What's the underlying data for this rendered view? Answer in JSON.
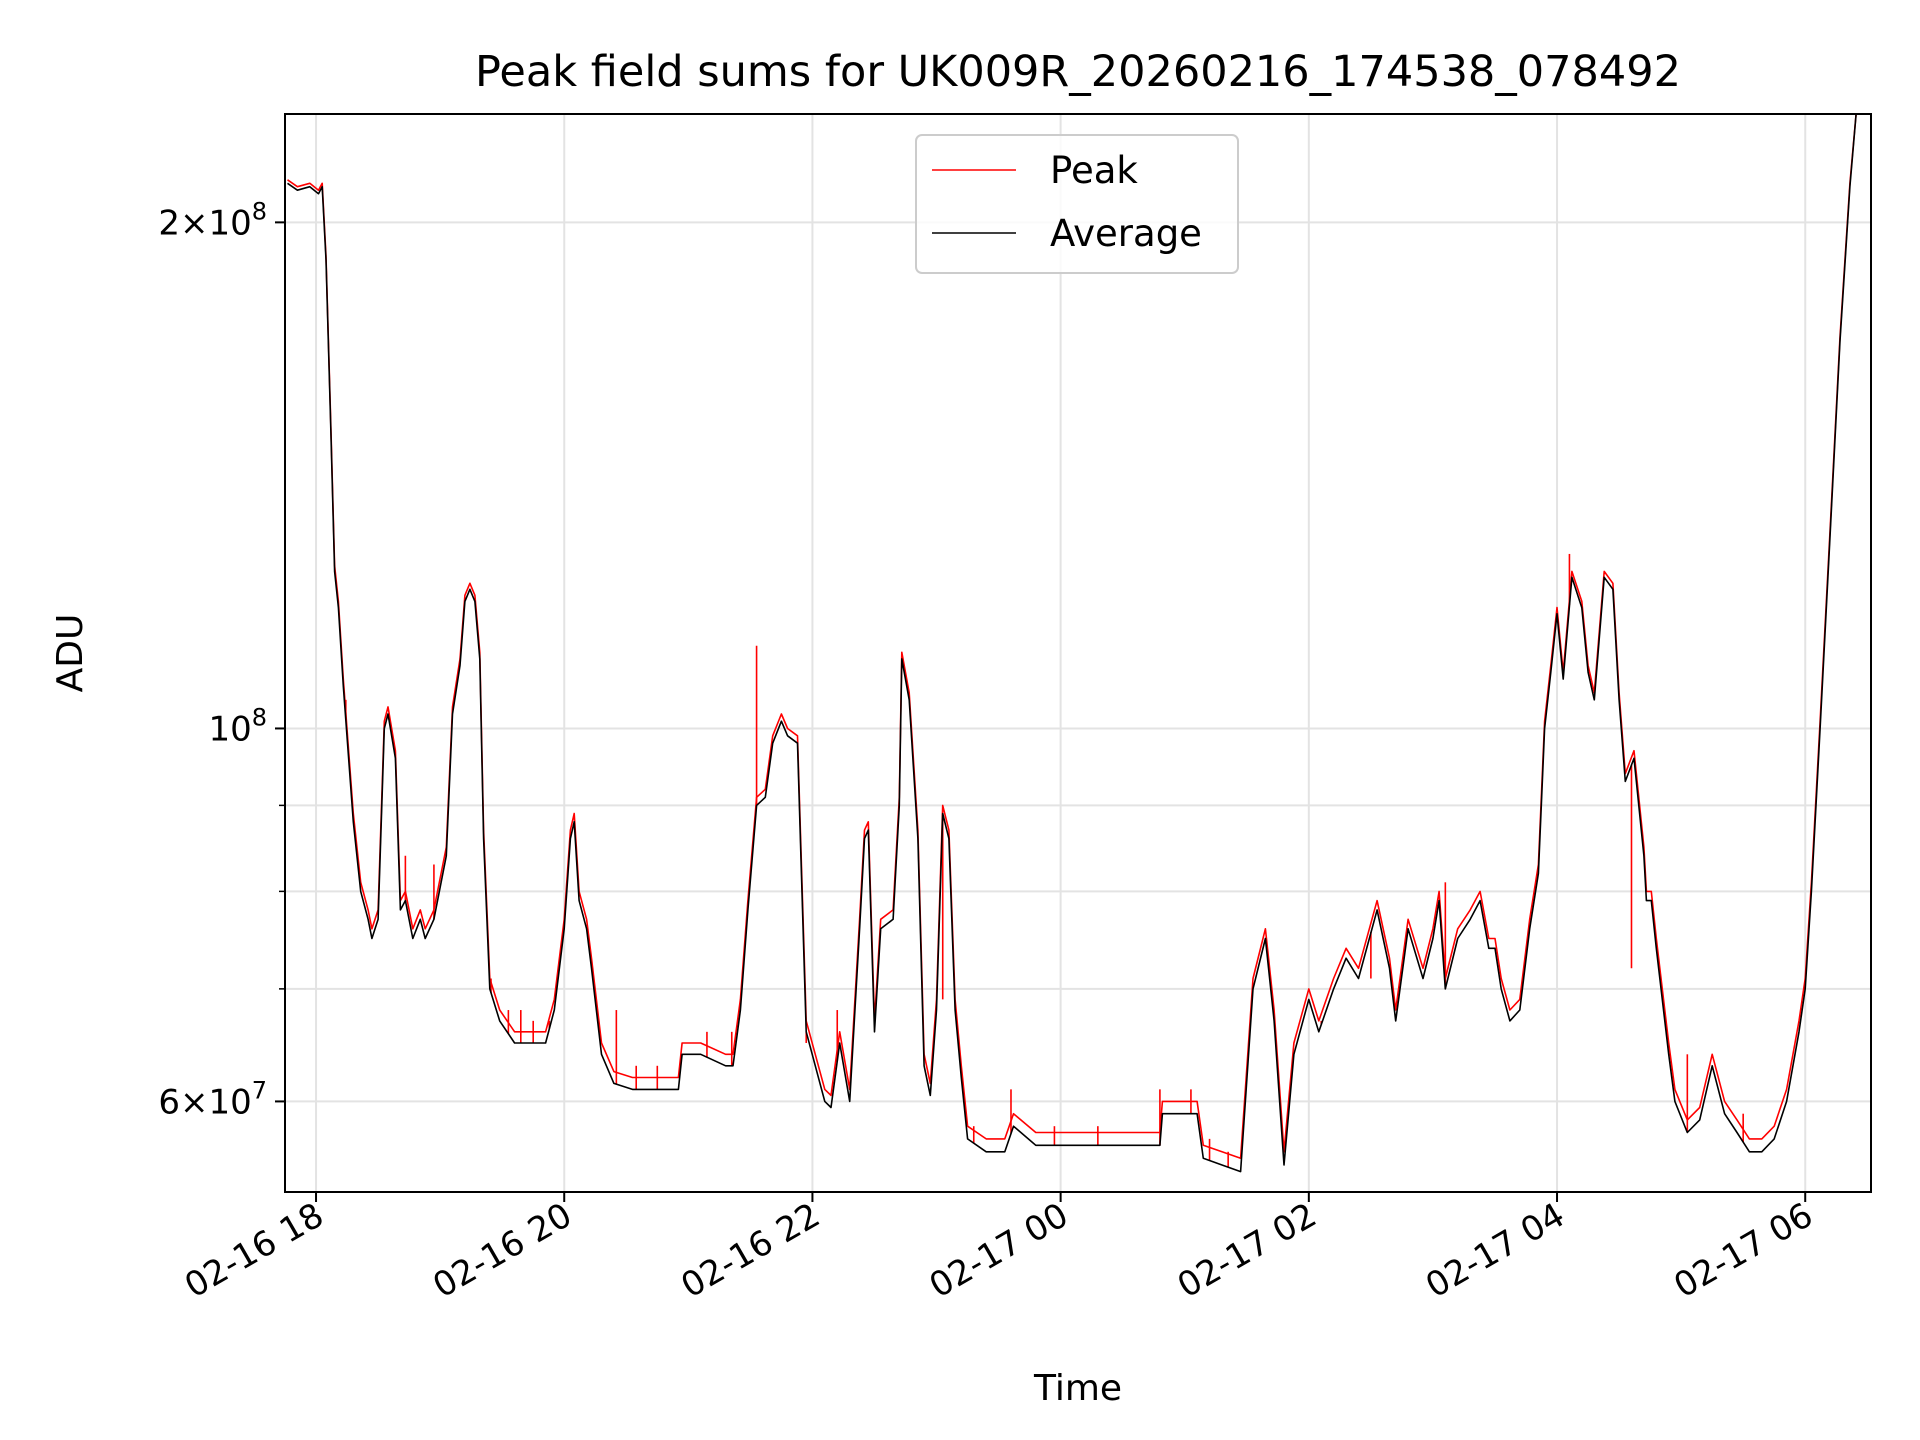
{
  "chart_data": {
    "type": "line",
    "title": "Peak field sums for UK009R_20260216_174538_078492",
    "xlabel": "Time",
    "ylabel": "ADU",
    "yscale": "log",
    "ylim": [
      53000000,
      232000000
    ],
    "xlim_hours": [
      17.75,
      30.53
    ],
    "grid": true,
    "legend_position": "top-center",
    "colors": {
      "peak": "#ff0000",
      "average": "#000000"
    },
    "x_ticks": [
      {
        "hour": 18,
        "label": "02-16 18"
      },
      {
        "hour": 20,
        "label": "02-16 20"
      },
      {
        "hour": 22,
        "label": "02-16 22"
      },
      {
        "hour": 24,
        "label": "02-17 00"
      },
      {
        "hour": 26,
        "label": "02-17 02"
      },
      {
        "hour": 28,
        "label": "02-17 04"
      },
      {
        "hour": 30,
        "label": "02-17 06"
      }
    ],
    "y_major_ticks": [
      {
        "value": 60000000,
        "mantissa": "6",
        "base": "10",
        "exp": "7"
      },
      {
        "value": 100000000,
        "mantissa": "",
        "base": "10",
        "exp": "8"
      },
      {
        "value": 200000000,
        "mantissa": "2",
        "base": "10",
        "exp": "8"
      }
    ],
    "y_minor_ticks": [
      70000000,
      80000000,
      90000000
    ],
    "series": [
      {
        "name": "Peak",
        "offset": 1000000,
        "spikes": [
          [
            18.24,
            104000000
          ],
          [
            18.72,
            84000000
          ],
          [
            18.95,
            83000000
          ],
          [
            19.41,
            71000000
          ],
          [
            19.55,
            68000000
          ],
          [
            19.65,
            68000000
          ],
          [
            19.75,
            67000000
          ],
          [
            19.88,
            67000000
          ],
          [
            20.3,
            64000000
          ],
          [
            20.42,
            68000000
          ],
          [
            20.58,
            63000000
          ],
          [
            20.75,
            63000000
          ],
          [
            21.15,
            66000000
          ],
          [
            21.35,
            66000000
          ],
          [
            21.55,
            112000000
          ],
          [
            21.95,
            65000000
          ],
          [
            22.2,
            68000000
          ],
          [
            23.05,
            69000000
          ],
          [
            23.3,
            58000000
          ],
          [
            23.6,
            61000000
          ],
          [
            23.95,
            58000000
          ],
          [
            24.3,
            58000000
          ],
          [
            24.8,
            61000000
          ],
          [
            25.05,
            61000000
          ],
          [
            25.2,
            57000000
          ],
          [
            25.35,
            56000000
          ],
          [
            26.1,
            67000000
          ],
          [
            26.5,
            71000000
          ],
          [
            27.1,
            81000000
          ],
          [
            27.3,
            77000000
          ],
          [
            28.1,
            127000000
          ],
          [
            28.6,
            72000000
          ],
          [
            29.05,
            64000000
          ],
          [
            29.3,
            61000000
          ],
          [
            29.5,
            59000000
          ]
        ]
      },
      {
        "name": "Average",
        "offset": 0,
        "points": [
          [
            17.77,
            211000000
          ],
          [
            17.85,
            209000000
          ],
          [
            17.95,
            210000000
          ],
          [
            18.02,
            208000000
          ],
          [
            18.05,
            210000000
          ],
          [
            18.08,
            190000000
          ],
          [
            18.12,
            150000000
          ],
          [
            18.15,
            124000000
          ],
          [
            18.18,
            118000000
          ],
          [
            18.22,
            106000000
          ],
          [
            18.3,
            88000000
          ],
          [
            18.36,
            80000000
          ],
          [
            18.42,
            77000000
          ],
          [
            18.45,
            75000000
          ],
          [
            18.5,
            77000000
          ],
          [
            18.55,
            100000000
          ],
          [
            18.58,
            102000000
          ],
          [
            18.64,
            96000000
          ],
          [
            18.68,
            78000000
          ],
          [
            18.72,
            79000000
          ],
          [
            18.78,
            75000000
          ],
          [
            18.84,
            77000000
          ],
          [
            18.88,
            75000000
          ],
          [
            18.95,
            77000000
          ],
          [
            19.05,
            84000000
          ],
          [
            19.1,
            102000000
          ],
          [
            19.16,
            109000000
          ],
          [
            19.2,
            119000000
          ],
          [
            19.24,
            121000000
          ],
          [
            19.28,
            119000000
          ],
          [
            19.32,
            110000000
          ],
          [
            19.35,
            86000000
          ],
          [
            19.4,
            70000000
          ],
          [
            19.48,
            67000000
          ],
          [
            19.6,
            65000000
          ],
          [
            19.75,
            65000000
          ],
          [
            19.85,
            65000000
          ],
          [
            19.92,
            68000000
          ],
          [
            20.0,
            76000000
          ],
          [
            20.05,
            86000000
          ],
          [
            20.08,
            88000000
          ],
          [
            20.12,
            79000000
          ],
          [
            20.18,
            76000000
          ],
          [
            20.22,
            72000000
          ],
          [
            20.3,
            64000000
          ],
          [
            20.4,
            61500000
          ],
          [
            20.55,
            61000000
          ],
          [
            20.75,
            61000000
          ],
          [
            20.92,
            61000000
          ],
          [
            20.95,
            64000000
          ],
          [
            21.1,
            64000000
          ],
          [
            21.3,
            63000000
          ],
          [
            21.36,
            63000000
          ],
          [
            21.42,
            68000000
          ],
          [
            21.48,
            78000000
          ],
          [
            21.55,
            90000000
          ],
          [
            21.62,
            91000000
          ],
          [
            21.68,
            98000000
          ],
          [
            21.75,
            101000000
          ],
          [
            21.8,
            99000000
          ],
          [
            21.88,
            98000000
          ],
          [
            21.95,
            66000000
          ],
          [
            22.1,
            60000000
          ],
          [
            22.15,
            59500000
          ],
          [
            22.22,
            65000000
          ],
          [
            22.3,
            60000000
          ],
          [
            22.38,
            76000000
          ],
          [
            22.42,
            86000000
          ],
          [
            22.45,
            87000000
          ],
          [
            22.5,
            66000000
          ],
          [
            22.55,
            76000000
          ],
          [
            22.65,
            77000000
          ],
          [
            22.7,
            90000000
          ],
          [
            22.72,
            110000000
          ],
          [
            22.78,
            104000000
          ],
          [
            22.85,
            86000000
          ],
          [
            22.9,
            63000000
          ],
          [
            22.95,
            60500000
          ],
          [
            23.0,
            68000000
          ],
          [
            23.05,
            89000000
          ],
          [
            23.1,
            86000000
          ],
          [
            23.15,
            68000000
          ],
          [
            23.2,
            62000000
          ],
          [
            23.25,
            57000000
          ],
          [
            23.4,
            56000000
          ],
          [
            23.55,
            56000000
          ],
          [
            23.62,
            58000000
          ],
          [
            23.8,
            56500000
          ],
          [
            24.2,
            56500000
          ],
          [
            24.6,
            56500000
          ],
          [
            24.8,
            56500000
          ],
          [
            24.82,
            59000000
          ],
          [
            25.1,
            59000000
          ],
          [
            25.15,
            55500000
          ],
          [
            25.3,
            55000000
          ],
          [
            25.45,
            54500000
          ],
          [
            25.55,
            70000000
          ],
          [
            25.65,
            75000000
          ],
          [
            25.72,
            67000000
          ],
          [
            25.8,
            55000000
          ],
          [
            25.88,
            64000000
          ],
          [
            26.0,
            69000000
          ],
          [
            26.08,
            66000000
          ],
          [
            26.2,
            70000000
          ],
          [
            26.3,
            73000000
          ],
          [
            26.4,
            71000000
          ],
          [
            26.55,
            78000000
          ],
          [
            26.65,
            72000000
          ],
          [
            26.7,
            67000000
          ],
          [
            26.8,
            76000000
          ],
          [
            26.92,
            71000000
          ],
          [
            27.0,
            75000000
          ],
          [
            27.05,
            79000000
          ],
          [
            27.1,
            70000000
          ],
          [
            27.2,
            75000000
          ],
          [
            27.3,
            77000000
          ],
          [
            27.38,
            79000000
          ],
          [
            27.45,
            74000000
          ],
          [
            27.5,
            74000000
          ],
          [
            27.55,
            70000000
          ],
          [
            27.62,
            67000000
          ],
          [
            27.7,
            68000000
          ],
          [
            27.78,
            76000000
          ],
          [
            27.85,
            82000000
          ],
          [
            27.9,
            100000000
          ],
          [
            27.95,
            108000000
          ],
          [
            28.0,
            117000000
          ],
          [
            28.05,
            107000000
          ],
          [
            28.12,
            123000000
          ],
          [
            28.2,
            118000000
          ],
          [
            28.25,
            108000000
          ],
          [
            28.3,
            104000000
          ],
          [
            28.38,
            123000000
          ],
          [
            28.45,
            121000000
          ],
          [
            28.5,
            104000000
          ],
          [
            28.55,
            93000000
          ],
          [
            28.62,
            96000000
          ],
          [
            28.7,
            84000000
          ],
          [
            28.72,
            79000000
          ],
          [
            28.76,
            79000000
          ],
          [
            28.8,
            74000000
          ],
          [
            28.9,
            64000000
          ],
          [
            28.95,
            60000000
          ],
          [
            29.05,
            57500000
          ],
          [
            29.15,
            58500000
          ],
          [
            29.25,
            63000000
          ],
          [
            29.35,
            59000000
          ],
          [
            29.45,
            57500000
          ],
          [
            29.55,
            56000000
          ],
          [
            29.65,
            56000000
          ],
          [
            29.75,
            57000000
          ],
          [
            29.85,
            60000000
          ],
          [
            29.95,
            66000000
          ],
          [
            30.0,
            70000000
          ],
          [
            30.05,
            80000000
          ],
          [
            30.12,
            100000000
          ],
          [
            30.2,
            130000000
          ],
          [
            30.28,
            170000000
          ],
          [
            30.36,
            210000000
          ],
          [
            30.41,
            232000000
          ]
        ]
      }
    ]
  }
}
